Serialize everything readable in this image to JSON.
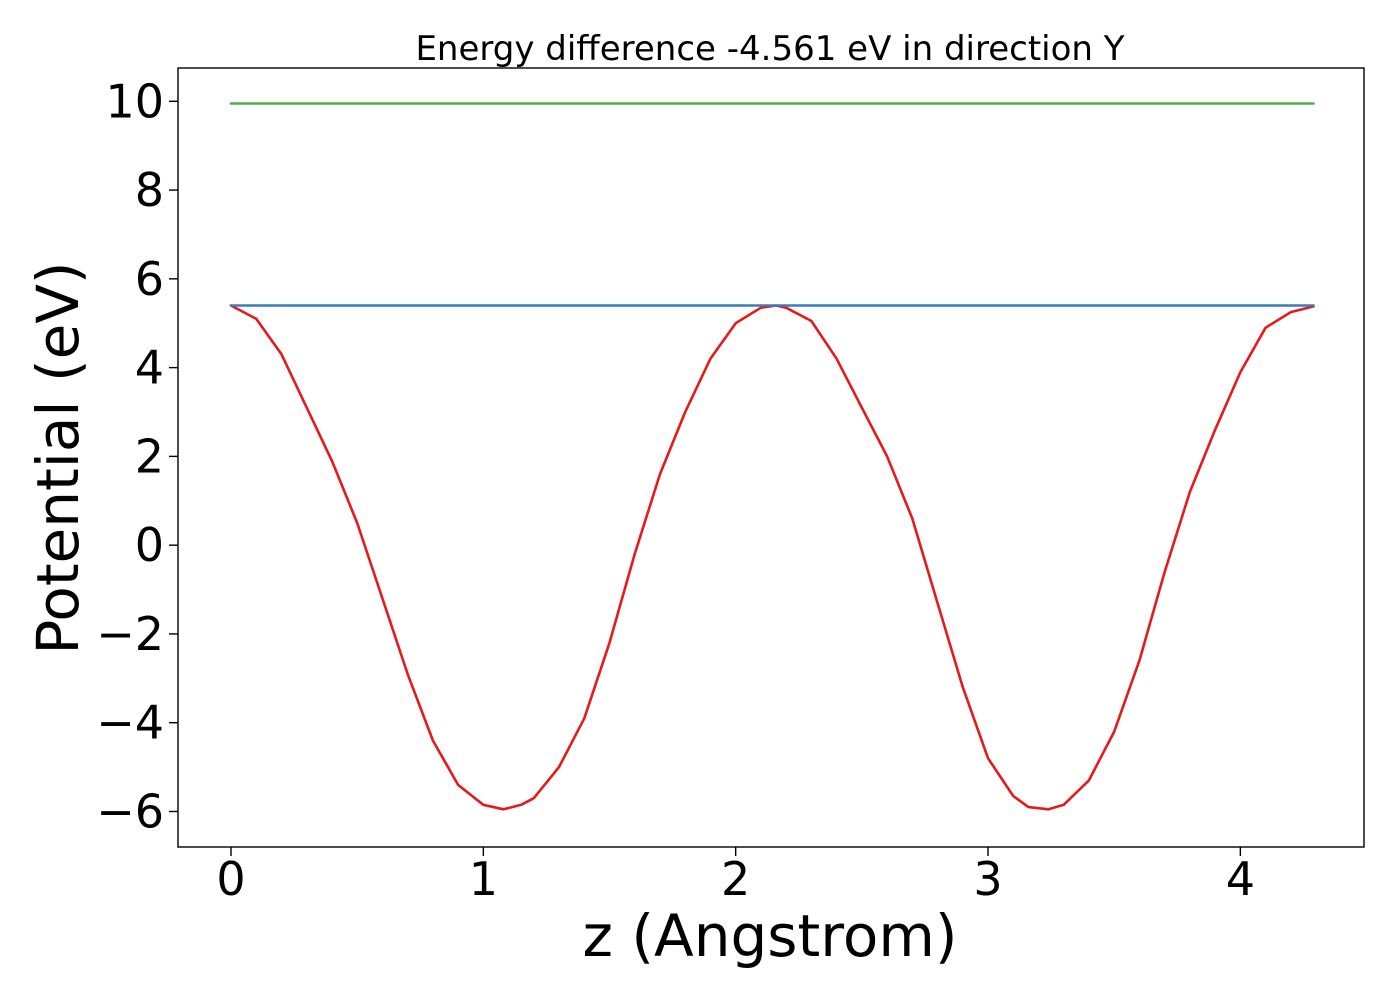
{
  "chart_data": {
    "type": "line",
    "title": "Energy difference -4.561 eV in direction Y",
    "xlabel": "z (Angstrom)",
    "ylabel": "Potential (eV)",
    "xlim": [
      -0.21,
      4.49
    ],
    "ylim": [
      -6.8,
      10.75
    ],
    "xticks": [
      0,
      1,
      2,
      3,
      4
    ],
    "xtick_labels": [
      "0",
      "1",
      "2",
      "3",
      "4"
    ],
    "yticks": [
      -6,
      -4,
      -2,
      0,
      2,
      4,
      6,
      8,
      10
    ],
    "ytick_labels": [
      "−6",
      "−4",
      "−2",
      "0",
      "2",
      "4",
      "6",
      "8",
      "10"
    ],
    "grid": false,
    "legend": "none",
    "series": [
      {
        "color": "#e41a1c",
        "kind": "curve",
        "x": [
          0.0,
          0.1,
          0.2,
          0.3,
          0.4,
          0.5,
          0.6,
          0.7,
          0.8,
          0.9,
          1.0,
          1.08,
          1.15,
          1.2,
          1.3,
          1.4,
          1.5,
          1.6,
          1.7,
          1.8,
          1.9,
          2.0,
          2.1,
          2.16,
          2.2,
          2.3,
          2.4,
          2.5,
          2.6,
          2.7,
          2.8,
          2.9,
          3.0,
          3.1,
          3.16,
          3.24,
          3.3,
          3.4,
          3.5,
          3.6,
          3.7,
          3.8,
          3.9,
          4.0,
          4.1,
          4.2,
          4.29
        ],
        "y": [
          5.4,
          5.1,
          4.3,
          3.1,
          1.9,
          0.5,
          -1.2,
          -2.9,
          -4.4,
          -5.4,
          -5.85,
          -5.95,
          -5.85,
          -5.7,
          -5.0,
          -3.9,
          -2.2,
          -0.2,
          1.6,
          3.0,
          4.2,
          5.0,
          5.35,
          5.4,
          5.35,
          5.05,
          4.2,
          3.1,
          2.0,
          0.6,
          -1.3,
          -3.2,
          -4.8,
          -5.65,
          -5.9,
          -5.95,
          -5.85,
          -5.3,
          -4.2,
          -2.6,
          -0.6,
          1.2,
          2.6,
          3.9,
          4.9,
          5.25,
          5.38
        ]
      },
      {
        "color": "#377eb8",
        "kind": "hline",
        "x": [
          0.0,
          4.29
        ],
        "y": [
          5.4,
          5.4
        ]
      },
      {
        "color": "#4daf4a",
        "kind": "hline",
        "x": [
          0.0,
          4.29
        ],
        "y": [
          9.95,
          9.95
        ]
      }
    ]
  }
}
